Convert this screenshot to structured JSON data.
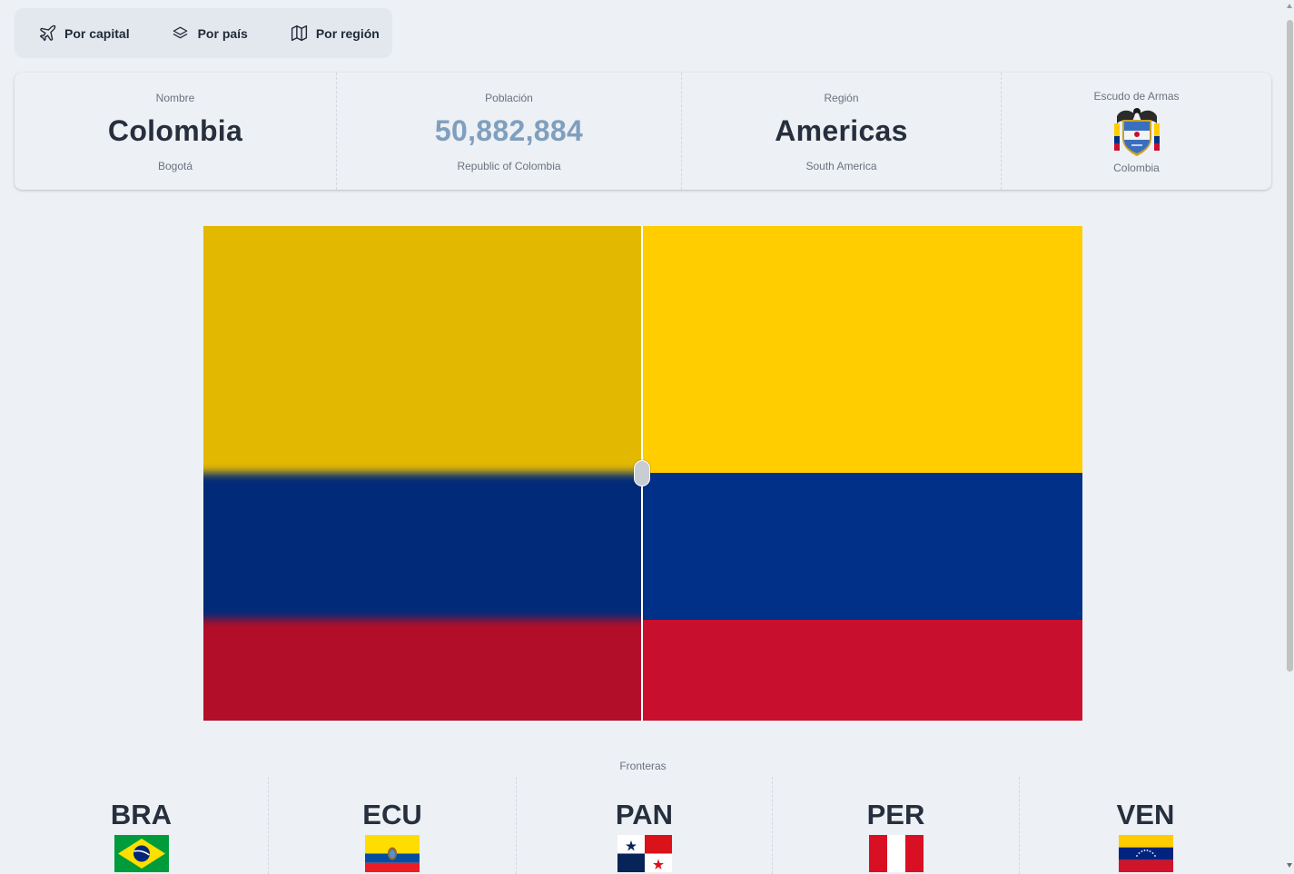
{
  "nav": {
    "items": [
      {
        "label": "Por capital",
        "icon": "plane-icon"
      },
      {
        "label": "Por país",
        "icon": "layers-icon"
      },
      {
        "label": "Por región",
        "icon": "map-icon"
      }
    ]
  },
  "stats": {
    "name": {
      "title": "Nombre",
      "value": "Colombia",
      "desc": "Bogotá"
    },
    "population": {
      "title": "Población",
      "value": "50,882,884",
      "desc": "Republic of Colombia"
    },
    "region": {
      "title": "Región",
      "value": "Americas",
      "desc": "South America"
    },
    "coat": {
      "title": "Escudo de Armas",
      "desc": "Colombia",
      "icon": "coat-of-arms-icon"
    }
  },
  "flag": {
    "country": "Colombia",
    "colors": {
      "yellow": "#ffcd00",
      "blue": "#003087",
      "red": "#c8102e"
    },
    "blurred_side": "left",
    "reveal_fraction": 0.5
  },
  "borders": {
    "title": "Fronteras",
    "items": [
      {
        "code": "BRA",
        "flag": "brazil-flag-icon"
      },
      {
        "code": "ECU",
        "flag": "ecuador-flag-icon"
      },
      {
        "code": "PAN",
        "flag": "panama-flag-icon"
      },
      {
        "code": "PER",
        "flag": "peru-flag-icon"
      },
      {
        "code": "VEN",
        "flag": "venezuela-flag-icon"
      }
    ]
  },
  "colors": {
    "background": "#edf0f4",
    "nav_bg": "#e3e8ef",
    "text_dark": "#262f3d",
    "population_accent": "#7f9fbe"
  }
}
